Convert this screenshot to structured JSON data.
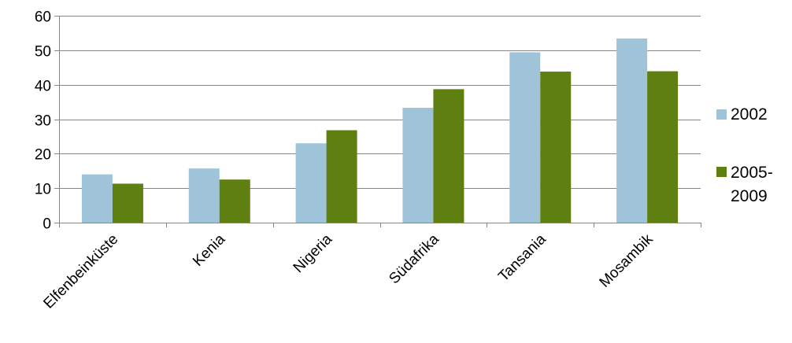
{
  "chart_data": {
    "type": "bar",
    "categories": [
      "Elfenbeinküste",
      "Kenia",
      "Nigeria",
      "Südafrika",
      "Tansania",
      "Mosambik"
    ],
    "series": [
      {
        "name": "2002",
        "values": [
          14,
          15.7,
          23,
          33.3,
          49.4,
          53.4
        ],
        "color": "#9fc3d8"
      },
      {
        "name": "2005-2009",
        "name_lines": [
          "2005-",
          "2009"
        ],
        "values": [
          11.3,
          12.5,
          26.8,
          38.7,
          43.8,
          43.9
        ],
        "color": "#5f7f10"
      }
    ],
    "ylim": [
      0,
      60
    ],
    "yticks": [
      "0",
      "10",
      "20",
      "30",
      "40",
      "50",
      "60"
    ],
    "grid": true,
    "legend_position": "right"
  }
}
